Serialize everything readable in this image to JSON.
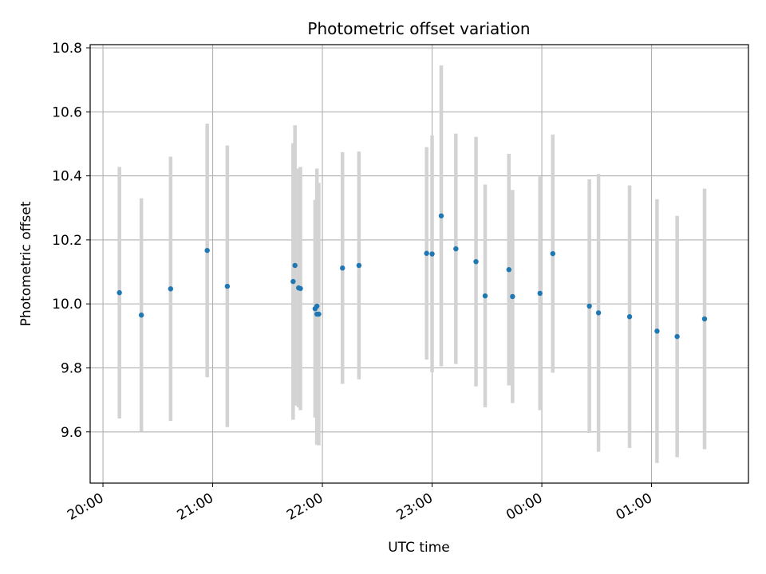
{
  "chart_data": {
    "type": "scatter",
    "title": "Photometric offset variation",
    "xlabel": "UTC time",
    "ylabel": "Photometric offset",
    "x_ticks": [
      "20:00",
      "21:00",
      "22:00",
      "23:00",
      "00:00",
      "01:00"
    ],
    "y_ticks": [
      "9.6",
      "9.8",
      "10.0",
      "10.2",
      "10.4",
      "10.6",
      "10.8"
    ],
    "xlim": [
      "19:53",
      "01:53"
    ],
    "ylim": [
      9.44,
      10.81
    ],
    "grid": true,
    "colors": {
      "points": "#1f77b4",
      "errorbars": "#d3d3d3",
      "grid": "#b0b0b0"
    },
    "series": [
      {
        "x": [
          "20:09",
          "20:21",
          "20:37",
          "20:57",
          "21:08",
          "21:44",
          "21:45",
          "21:47",
          "21:48",
          "21:56",
          "21:57",
          "21:57",
          "21:58",
          "22:11",
          "22:20",
          "22:57",
          "23:00",
          "23:05",
          "23:13",
          "23:24",
          "23:29",
          "23:42",
          "23:44",
          "23:59",
          "24:06",
          "24:26",
          "24:31",
          "24:48",
          "25:03",
          "25:14",
          "25:29"
        ],
        "y": [
          10.035,
          9.965,
          10.047,
          10.167,
          10.055,
          10.07,
          10.12,
          10.05,
          10.048,
          9.985,
          9.993,
          9.968,
          9.968,
          10.112,
          10.12,
          10.158,
          10.156,
          10.275,
          10.172,
          10.132,
          10.025,
          10.107,
          10.023,
          10.033,
          10.157,
          9.993,
          9.972,
          9.96,
          9.915,
          9.898,
          9.953
        ],
        "yerr": [
          0.393,
          0.365,
          0.413,
          0.396,
          0.44,
          0.432,
          0.438,
          0.373,
          0.38,
          0.34,
          0.43,
          0.408,
          0.41,
          0.362,
          0.356,
          0.332,
          0.37,
          0.47,
          0.36,
          0.39,
          0.348,
          0.362,
          0.333,
          0.365,
          0.372,
          0.396,
          0.434,
          0.41,
          0.412,
          0.377,
          0.407
        ]
      }
    ]
  }
}
